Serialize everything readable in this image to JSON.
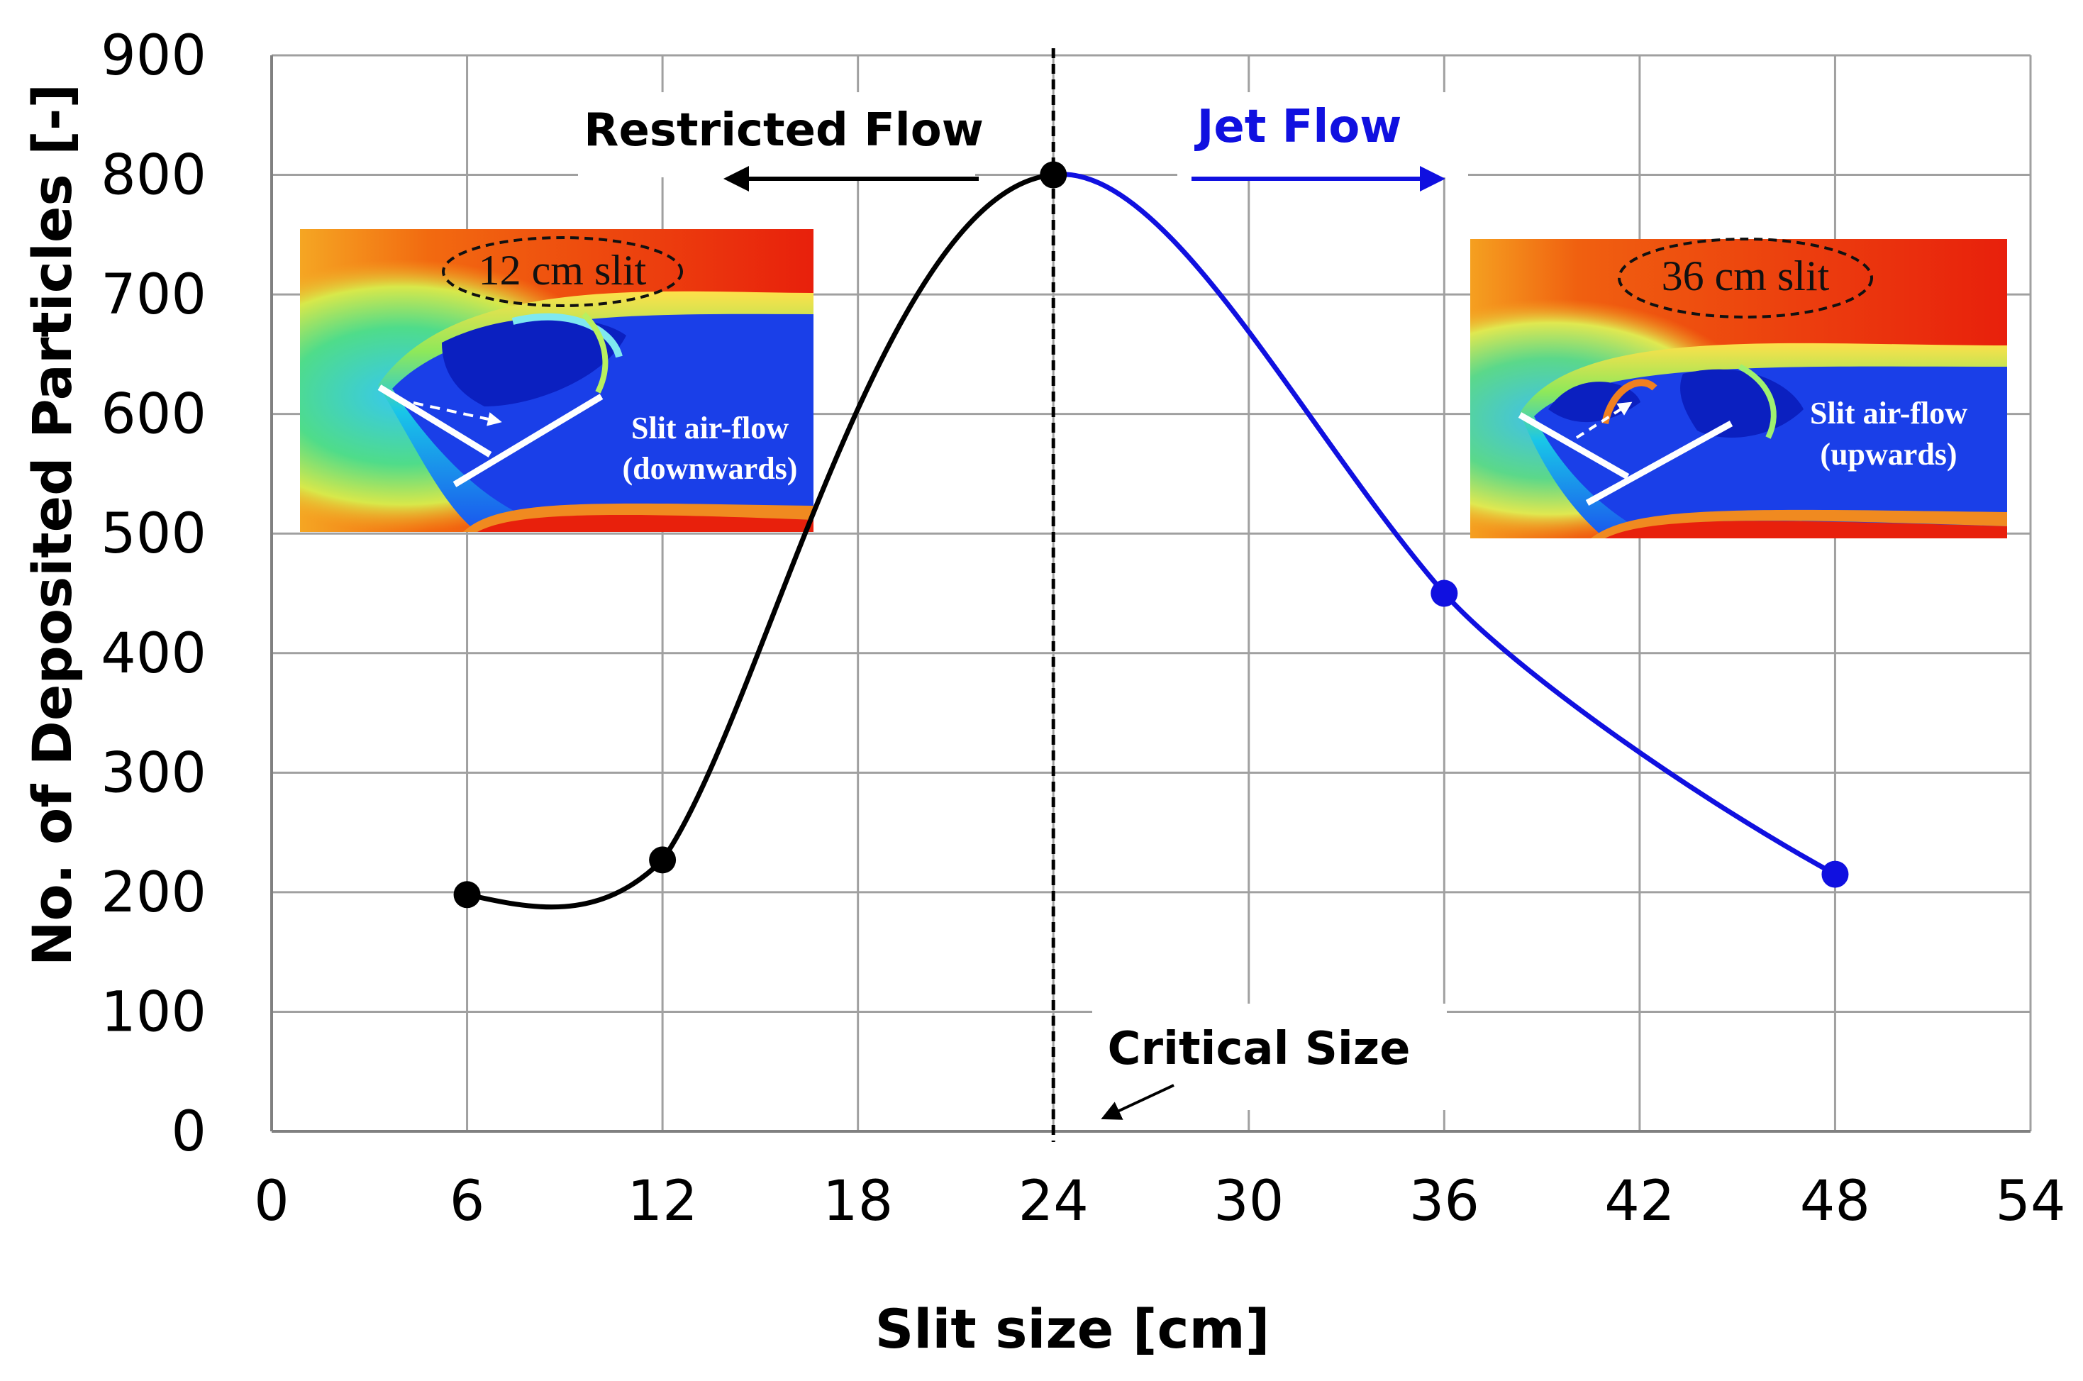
{
  "chart_data": {
    "type": "line",
    "title": "",
    "xlabel": "Slit size [cm]",
    "ylabel": "No. of Deposited Particles [-]",
    "xlim": [
      0,
      54
    ],
    "ylim": [
      0,
      900
    ],
    "x_ticks": [
      "0",
      "6",
      "12",
      "18",
      "24",
      "30",
      "36",
      "42",
      "48",
      "54"
    ],
    "y_ticks": [
      "0",
      "100",
      "200",
      "300",
      "400",
      "500",
      "600",
      "700",
      "800",
      "900"
    ],
    "grid": true,
    "series": [
      {
        "name": "Restricted Flow",
        "color": "#000000",
        "x": [
          6,
          12,
          24
        ],
        "y": [
          198,
          227,
          800
        ]
      },
      {
        "name": "Jet Flow",
        "color": "#1010e0",
        "x": [
          24,
          36,
          48
        ],
        "y": [
          800,
          450,
          215
        ]
      }
    ],
    "critical_size_x": 24,
    "annotations": {
      "restricted_flow": "Restricted Flow",
      "jet_flow": "Jet Flow",
      "critical_size": "Critical Size"
    },
    "insets": [
      {
        "title": "12 cm slit",
        "flow_line1": "Slit air-flow",
        "flow_line2": "(downwards)"
      },
      {
        "title": "36 cm slit",
        "flow_line1": "Slit air-flow",
        "flow_line2": "(upwards)"
      }
    ]
  }
}
